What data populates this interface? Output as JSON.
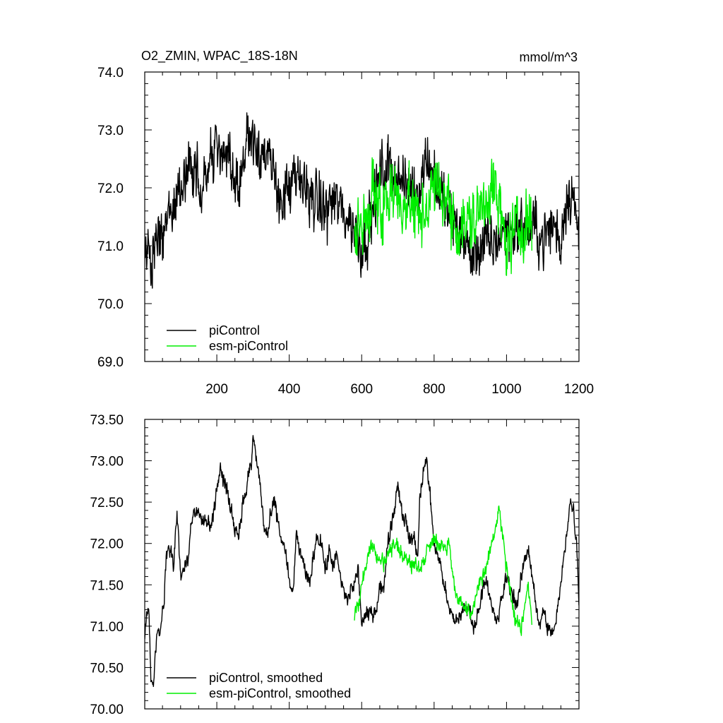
{
  "title_left": "O2_ZMIN, WPAC_18S-18N",
  "title_right": "mmol/m^3",
  "colors": {
    "picontrol": "#000000",
    "esm_picontrol": "#00ee00"
  },
  "chart_data": [
    {
      "type": "line",
      "panel": "top",
      "title": "O2_ZMIN, WPAC_18S-18N",
      "units": "mmol/m^3",
      "xlim": [
        1,
        1200
      ],
      "ylim": [
        69.0,
        74.0
      ],
      "xticks": [
        200,
        400,
        600,
        800,
        1000,
        1200
      ],
      "xtick_labels": [
        "200",
        "400",
        "600",
        "800",
        "1000",
        "1200"
      ],
      "yticks": [
        69.0,
        70.0,
        71.0,
        72.0,
        73.0,
        74.0
      ],
      "ytick_labels": [
        "69.0",
        "70.0",
        "71.0",
        "72.0",
        "73.0",
        "74.0"
      ],
      "grid": false,
      "legend_position": "bottom-left",
      "series": [
        {
          "name": "piControl",
          "color": "#000000",
          "noise": 0.36,
          "x": [
            1,
            20,
            40,
            60,
            80,
            100,
            130,
            160,
            200,
            240,
            260,
            290,
            320,
            350,
            380,
            420,
            450,
            480,
            500,
            520,
            560,
            580,
            600,
            620,
            650,
            680,
            720,
            760,
            780,
            800,
            840,
            880,
            900,
            930,
            960,
            1000,
            1040,
            1080,
            1100,
            1130,
            1150,
            1160,
            1180,
            1195,
            1200
          ],
          "y": [
            70.9,
            70.7,
            71.2,
            71.3,
            71.7,
            72.1,
            72.3,
            72.1,
            72.7,
            72.3,
            72.1,
            73.0,
            72.7,
            72.3,
            71.8,
            72.1,
            72.0,
            71.7,
            71.6,
            71.8,
            71.5,
            71.3,
            71.0,
            71.3,
            72.2,
            72.4,
            72.0,
            72.0,
            72.6,
            72.2,
            71.5,
            71.2,
            70.8,
            71.0,
            71.0,
            71.3,
            71.3,
            71.3,
            71.1,
            71.4,
            71.0,
            71.7,
            72.0,
            71.3,
            71.0
          ]
        },
        {
          "name": "esm-piControl",
          "color": "#00ee00",
          "noise": 0.4,
          "x": [
            580,
            600,
            620,
            640,
            660,
            680,
            700,
            740,
            760,
            800,
            830,
            860,
            900,
            920,
            940,
            960,
            980,
            1000,
            1020,
            1040,
            1060,
            1070
          ],
          "y": [
            71.2,
            71.3,
            71.6,
            71.9,
            71.7,
            72.0,
            71.8,
            71.7,
            71.4,
            72.0,
            71.9,
            71.3,
            71.4,
            71.5,
            71.8,
            72.1,
            71.6,
            71.0,
            71.2,
            71.3,
            71.5,
            71.3
          ]
        }
      ]
    },
    {
      "type": "line",
      "panel": "bottom",
      "xlim": [
        1,
        1200
      ],
      "ylim": [
        70.0,
        73.5
      ],
      "yticks": [
        70.0,
        70.5,
        71.0,
        71.5,
        72.0,
        72.5,
        73.0,
        73.5
      ],
      "ytick_labels": [
        "70.00",
        "70.50",
        "71.00",
        "71.50",
        "72.00",
        "72.50",
        "73.00",
        "73.50"
      ],
      "grid": false,
      "legend_position": "bottom-left",
      "series": [
        {
          "name": "piControl, smoothed",
          "color": "#000000",
          "noise": 0.07,
          "x": [
            1,
            5,
            12,
            18,
            25,
            35,
            45,
            55,
            60,
            65,
            75,
            80,
            90,
            100,
            110,
            120,
            130,
            150,
            160,
            170,
            180,
            190,
            200,
            210,
            220,
            235,
            250,
            260,
            270,
            280,
            290,
            295,
            300,
            310,
            320,
            330,
            340,
            350,
            360,
            375,
            390,
            400,
            410,
            420,
            435,
            450,
            460,
            475,
            490,
            500,
            510,
            520,
            530,
            545,
            560,
            570,
            580,
            590,
            600,
            620,
            640,
            650,
            660,
            670,
            680,
            690,
            700,
            710,
            720,
            735,
            745,
            755,
            760,
            770,
            780,
            800,
            820,
            840,
            860,
            880,
            900,
            910,
            925,
            940,
            960,
            975,
            990,
            1000,
            1020,
            1030,
            1045,
            1060,
            1075,
            1090,
            1100,
            1120,
            1135,
            1150,
            1160,
            1175,
            1185,
            1195,
            1200
          ],
          "y": [
            70.9,
            71.1,
            71.25,
            70.4,
            70.3,
            70.9,
            71.0,
            71.3,
            71.85,
            71.95,
            71.9,
            71.7,
            72.4,
            71.6,
            71.7,
            71.8,
            72.3,
            72.4,
            72.3,
            72.3,
            72.25,
            72.3,
            72.7,
            72.9,
            72.75,
            72.5,
            72.2,
            72.1,
            72.45,
            72.6,
            72.9,
            72.9,
            73.3,
            73.0,
            72.7,
            72.2,
            72.1,
            72.35,
            72.5,
            72.1,
            71.9,
            71.5,
            71.4,
            72.1,
            71.8,
            71.55,
            71.6,
            72.1,
            72.0,
            71.65,
            71.9,
            71.75,
            71.85,
            71.5,
            71.3,
            71.45,
            71.5,
            71.7,
            71.05,
            71.15,
            71.2,
            71.5,
            71.4,
            71.95,
            72.2,
            72.4,
            72.75,
            72.4,
            72.3,
            72.0,
            72.1,
            71.8,
            72.5,
            72.9,
            73.0,
            72.0,
            71.7,
            71.2,
            71.05,
            71.2,
            71.2,
            70.95,
            71.25,
            71.6,
            71.2,
            71.05,
            71.4,
            71.6,
            71.35,
            71.25,
            71.7,
            71.95,
            71.5,
            70.95,
            71.2,
            70.9,
            71.0,
            71.5,
            71.9,
            72.5,
            72.4,
            71.9,
            71.3
          ]
        },
        {
          "name": "esm-piControl, smoothed",
          "color": "#00ee00",
          "noise": 0.07,
          "x": [
            580,
            590,
            600,
            610,
            620,
            630,
            640,
            660,
            680,
            700,
            720,
            740,
            760,
            780,
            800,
            820,
            840,
            860,
            880,
            900,
            910,
            920,
            940,
            960,
            980,
            1000,
            1020,
            1040,
            1050,
            1060,
            1070
          ],
          "y": [
            71.1,
            71.3,
            71.45,
            71.7,
            71.9,
            72.0,
            71.85,
            71.75,
            71.9,
            72.0,
            71.8,
            71.75,
            71.7,
            71.9,
            72.1,
            71.95,
            72.0,
            71.4,
            71.25,
            71.1,
            71.2,
            71.5,
            71.65,
            72.0,
            72.4,
            71.7,
            71.1,
            70.95,
            71.3,
            71.5,
            71.05
          ]
        }
      ]
    }
  ]
}
